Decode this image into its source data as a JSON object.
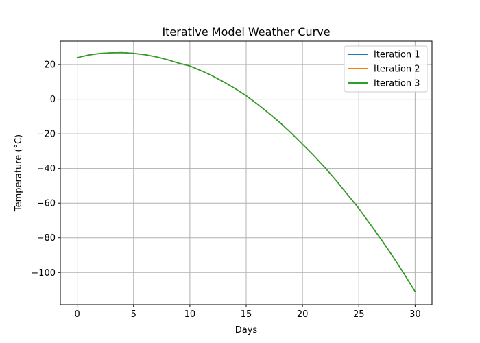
{
  "chart_data": {
    "type": "line",
    "title": "Iterative Model Weather Curve",
    "xlabel": "Days",
    "ylabel": "Temperature (°C)",
    "xlim": [
      -1.5,
      31.5
    ],
    "ylim": [
      -118.5,
      33.5
    ],
    "xticks": [
      0,
      5,
      10,
      15,
      20,
      25,
      30
    ],
    "yticks": [
      20,
      0,
      -20,
      -40,
      -60,
      -80,
      -100
    ],
    "xtick_labels": [
      "0",
      "5",
      "10",
      "15",
      "20",
      "25",
      "30"
    ],
    "ytick_labels": [
      "20",
      "0",
      "−20",
      "−40",
      "−60",
      "−80",
      "−100"
    ],
    "grid": true,
    "legend_position": "top-right",
    "x": [
      0,
      1,
      2,
      3,
      4,
      5,
      6,
      7,
      8,
      9,
      10,
      11,
      12,
      13,
      14,
      15,
      16,
      17,
      18,
      19,
      20,
      21,
      22,
      23,
      24,
      25,
      26,
      27,
      28,
      29,
      30
    ],
    "series": [
      {
        "name": "Iteration 1",
        "color": "#1f77b4",
        "values": [
          24.0,
          25.5,
          26.4,
          26.8,
          26.9,
          26.5,
          25.7,
          24.5,
          22.8,
          20.8,
          19.2,
          16.5,
          13.5,
          10.0,
          6.2,
          2.0,
          -2.8,
          -8.0,
          -13.5,
          -19.5,
          -26.0,
          -32.5,
          -39.5,
          -47.0,
          -55.0,
          -63.0,
          -72.0,
          -81.0,
          -90.5,
          -100.5,
          -111.0
        ]
      },
      {
        "name": "Iteration 2",
        "color": "#ff7f0e",
        "values": [
          24.0,
          25.5,
          26.4,
          26.8,
          26.9,
          26.5,
          25.7,
          24.5,
          22.8,
          20.8,
          19.2,
          16.5,
          13.5,
          10.0,
          6.2,
          2.0,
          -2.8,
          -8.0,
          -13.5,
          -19.5,
          -26.0,
          -32.5,
          -39.5,
          -47.0,
          -55.0,
          -63.0,
          -72.0,
          -81.0,
          -90.5,
          -100.5,
          -111.0
        ]
      },
      {
        "name": "Iteration 3",
        "color": "#2ca02c",
        "values": [
          24.0,
          25.5,
          26.4,
          26.8,
          26.9,
          26.5,
          25.7,
          24.5,
          22.8,
          20.8,
          19.2,
          16.5,
          13.5,
          10.0,
          6.2,
          2.0,
          -2.8,
          -8.0,
          -13.5,
          -19.5,
          -26.0,
          -32.5,
          -39.5,
          -47.0,
          -55.0,
          -63.0,
          -72.0,
          -81.0,
          -90.5,
          -100.5,
          -111.0
        ]
      }
    ]
  }
}
